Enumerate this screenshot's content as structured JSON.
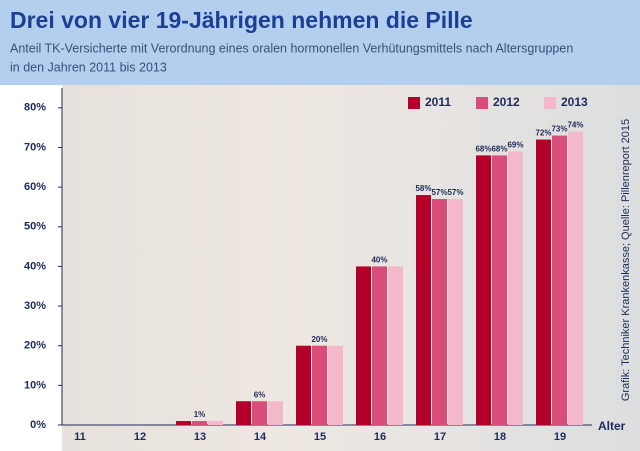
{
  "chart_data": {
    "type": "bar",
    "title": "Drei von vier 19-Jährigen nehmen die Pille",
    "subtitle": [
      "Anteil TK-Versicherte mit Verordnung eines oralen hormonellen Verhütungsmittels nach Altersgruppen",
      "in den Jahren 2011 bis 2013"
    ],
    "x_label": "Alter",
    "source": "Grafik: Techniker Krankenkasse; Quelle: Pillenreport 2015",
    "categories": [
      "11",
      "12",
      "13",
      "14",
      "15",
      "16",
      "17",
      "18",
      "19"
    ],
    "series": [
      {
        "name": "2011",
        "color": "#b3002b",
        "values": [
          0,
          0,
          1,
          6,
          20,
          40,
          58,
          68,
          72
        ],
        "value_labels": [
          null,
          null,
          null,
          null,
          null,
          null,
          "58%",
          "68%",
          "72%"
        ]
      },
      {
        "name": "2012",
        "color": "#d84d7a",
        "values": [
          0,
          0,
          1,
          6,
          20,
          40,
          57,
          68,
          73
        ],
        "value_labels": [
          null,
          null,
          "1%",
          "6%",
          "20%",
          "40%",
          "57%",
          "68%",
          "73%"
        ]
      },
      {
        "name": "2013",
        "color": "#f3b9cb",
        "values": [
          0,
          0,
          1,
          6,
          20,
          40,
          57,
          69,
          74
        ],
        "value_labels": [
          null,
          null,
          null,
          null,
          null,
          null,
          "57%",
          "69%",
          "74%"
        ]
      }
    ],
    "ylim": [
      0,
      85
    ],
    "yticks": [
      {
        "value": 0,
        "label": "0%"
      },
      {
        "value": 10,
        "label": "10%"
      },
      {
        "value": 20,
        "label": "20%"
      },
      {
        "value": 30,
        "label": "30%"
      },
      {
        "value": 40,
        "label": "40%"
      },
      {
        "value": 50,
        "label": "50%"
      },
      {
        "value": 60,
        "label": "60%"
      },
      {
        "value": 70,
        "label": "70%"
      },
      {
        "value": 80,
        "label": "80%"
      }
    ],
    "legend": "top-right"
  }
}
